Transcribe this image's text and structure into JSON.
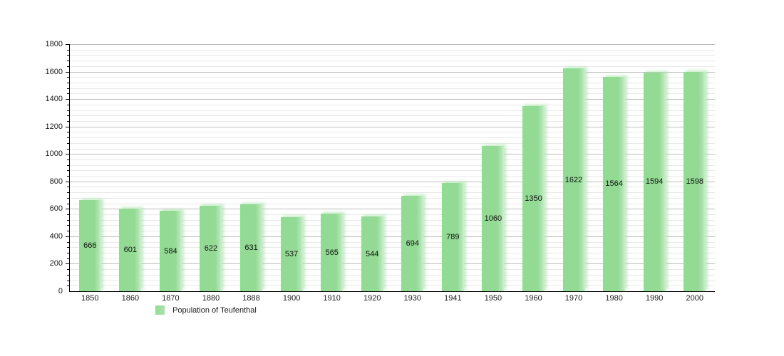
{
  "chart_data": {
    "type": "bar",
    "title": "",
    "categories": [
      "1850",
      "1860",
      "1870",
      "1880",
      "1888",
      "1900",
      "1910",
      "1920",
      "1930",
      "1941",
      "1950",
      "1960",
      "1970",
      "1980",
      "1990",
      "2000"
    ],
    "values": [
      666,
      601,
      584,
      622,
      631,
      537,
      565,
      544,
      694,
      789,
      1060,
      1350,
      1622,
      1564,
      1594,
      1598
    ],
    "legend_label": "Population of Teufenthal",
    "xlabel": "",
    "ylabel": "",
    "ylim": [
      0,
      1800
    ],
    "y_major_step": 200,
    "y_minor_step": 40,
    "y_tick_labels": [
      "0",
      "200",
      "400",
      "600",
      "800",
      "1000",
      "1200",
      "1400",
      "1600",
      "1800"
    ],
    "grid": true,
    "legend_position": "bottom-left",
    "bar_color": "#93db95",
    "bar_highlight_color": "#cdf0ce",
    "major_grid_color": "#bdbdbd",
    "minor_grid_color": "#e9e9e9",
    "axis_color": "#000000",
    "value_labels_shown": true,
    "value_label_position": "center-of-bar"
  }
}
